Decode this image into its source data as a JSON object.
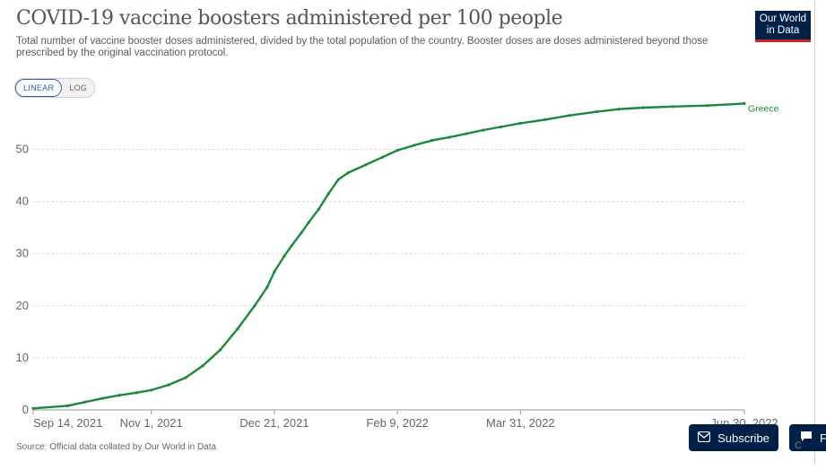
{
  "header": {
    "title": "COVID-19 vaccine boosters administered per 100 people",
    "subtitle": "Total number of vaccine booster doses administered, divided by the total population of the country. Booster doses are doses administered beyond those prescribed by the original vaccination protocol.",
    "logo_line1": "Our World",
    "logo_line2": "in Data"
  },
  "scale_toggle": {
    "linear_label": "LINEAR",
    "log_label": "LOG",
    "selected": "LINEAR"
  },
  "footer": {
    "source": "Source: Official data collated by Our World in Data",
    "subscribe_label": "Subscribe",
    "feedback_label": "F",
    "corner_text": "C"
  },
  "colors": {
    "series": "#1a8a3a",
    "brand": "#002147",
    "accent": "#ce261e",
    "grid": "#dddddd"
  },
  "chart_data": {
    "type": "line",
    "title": "COVID-19 vaccine boosters administered per 100 people",
    "xlabel": "",
    "ylabel": "",
    "ylim": [
      0,
      58
    ],
    "yticks": [
      0,
      10,
      20,
      30,
      40,
      50
    ],
    "xticks": [
      "Sep 14, 2021",
      "Nov 1, 2021",
      "Dec 21, 2021",
      "Feb 9, 2022",
      "Mar 31, 2022",
      "Jun 30, 2022"
    ],
    "grid": true,
    "series": [
      {
        "name": "Greece",
        "x": [
          "2021-09-14",
          "2021-09-28",
          "2021-10-05",
          "2021-10-12",
          "2021-10-19",
          "2021-10-26",
          "2021-11-01",
          "2021-11-08",
          "2021-11-15",
          "2021-11-22",
          "2021-11-29",
          "2021-12-06",
          "2021-12-13",
          "2021-12-18",
          "2021-12-21",
          "2021-12-25",
          "2021-12-28",
          "2022-01-01",
          "2022-01-04",
          "2022-01-08",
          "2022-01-12",
          "2022-01-16",
          "2022-01-20",
          "2022-01-27",
          "2022-02-03",
          "2022-02-09",
          "2022-02-16",
          "2022-02-23",
          "2022-03-02",
          "2022-03-09",
          "2022-03-16",
          "2022-03-23",
          "2022-03-31",
          "2022-04-10",
          "2022-04-20",
          "2022-05-01",
          "2022-05-10",
          "2022-05-20",
          "2022-06-01",
          "2022-06-15",
          "2022-06-30"
        ],
        "y": [
          0.3,
          0.8,
          1.5,
          2.2,
          2.8,
          3.3,
          3.8,
          4.8,
          6.2,
          8.5,
          11.5,
          15.5,
          20,
          23.5,
          26.5,
          29.5,
          31.5,
          34,
          36,
          38.5,
          41.5,
          44.2,
          45.5,
          47,
          48.5,
          49.8,
          50.8,
          51.7,
          52.3,
          53,
          53.7,
          54.3,
          55,
          55.7,
          56.5,
          57.2,
          57.7,
          58,
          58.2,
          58.4,
          58.8
        ]
      }
    ]
  }
}
